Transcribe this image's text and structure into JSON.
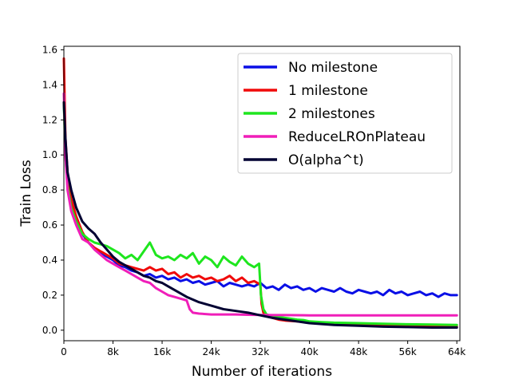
{
  "chart_data": {
    "type": "line",
    "title": "",
    "xlabel": "Number of iterations",
    "ylabel": "Train Loss",
    "xlim": [
      0,
      64500
    ],
    "ylim": [
      -0.06,
      1.62
    ],
    "xticks": [
      0,
      8000,
      16000,
      24000,
      32000,
      40000,
      48000,
      56000,
      64000
    ],
    "xtick_labels": [
      "0",
      "8k",
      "16k",
      "24k",
      "32k",
      "40k",
      "48k",
      "56k",
      "64k"
    ],
    "yticks": [
      0.0,
      0.2,
      0.4,
      0.6,
      0.8,
      1.0,
      1.2,
      1.4,
      1.6
    ],
    "ytick_labels": [
      "0.0",
      "0.2",
      "0.4",
      "0.6",
      "0.8",
      "1.0",
      "1.2",
      "1.4",
      "1.6"
    ],
    "grid": false,
    "legend_position": "top-right",
    "series": [
      {
        "name": "No milestone",
        "color": "#0a0fe6",
        "x": [
          0,
          250,
          600,
          1200,
          2000,
          3000,
          4000,
          5000,
          6000,
          7000,
          8000,
          9000,
          10000,
          11000,
          12000,
          13000,
          14000,
          15000,
          16000,
          17000,
          18000,
          19000,
          20000,
          21000,
          22000,
          23000,
          24000,
          25000,
          26000,
          27000,
          28000,
          29000,
          30000,
          31000,
          32000,
          33000,
          34000,
          35000,
          36000,
          37000,
          38000,
          39000,
          40000,
          41000,
          42000,
          43000,
          44000,
          45000,
          46000,
          47000,
          48000,
          49000,
          50000,
          51000,
          52000,
          53000,
          54000,
          55000,
          56000,
          57000,
          58000,
          59000,
          60000,
          61000,
          62000,
          63000,
          64000
        ],
        "y": [
          1.3,
          1.05,
          0.85,
          0.7,
          0.62,
          0.55,
          0.5,
          0.47,
          0.44,
          0.42,
          0.4,
          0.37,
          0.36,
          0.34,
          0.33,
          0.31,
          0.32,
          0.3,
          0.31,
          0.29,
          0.3,
          0.28,
          0.29,
          0.27,
          0.28,
          0.26,
          0.27,
          0.28,
          0.25,
          0.27,
          0.26,
          0.25,
          0.26,
          0.25,
          0.27,
          0.24,
          0.25,
          0.23,
          0.26,
          0.24,
          0.25,
          0.23,
          0.24,
          0.22,
          0.24,
          0.23,
          0.22,
          0.24,
          0.22,
          0.21,
          0.23,
          0.22,
          0.21,
          0.22,
          0.2,
          0.23,
          0.21,
          0.22,
          0.2,
          0.21,
          0.22,
          0.2,
          0.21,
          0.19,
          0.21,
          0.2,
          0.2
        ]
      },
      {
        "name": "1 milestone",
        "color": "#f00a0a",
        "x": [
          0,
          250,
          600,
          1200,
          2000,
          3000,
          4000,
          5000,
          6000,
          7000,
          8000,
          9000,
          10000,
          11000,
          12000,
          13000,
          14000,
          15000,
          16000,
          17000,
          18000,
          19000,
          20000,
          21000,
          22000,
          23000,
          24000,
          25000,
          26000,
          27000,
          28000,
          29000,
          30000,
          31000,
          32000,
          32200,
          32500,
          33000,
          34000,
          35000,
          36000,
          38000,
          40000,
          44000,
          48000,
          52000,
          56000,
          60000,
          64000
        ],
        "y": [
          1.55,
          1.1,
          0.9,
          0.75,
          0.65,
          0.56,
          0.5,
          0.47,
          0.45,
          0.43,
          0.41,
          0.38,
          0.37,
          0.36,
          0.35,
          0.34,
          0.36,
          0.34,
          0.35,
          0.32,
          0.33,
          0.3,
          0.32,
          0.3,
          0.31,
          0.29,
          0.3,
          0.28,
          0.29,
          0.31,
          0.28,
          0.3,
          0.27,
          0.28,
          0.26,
          0.15,
          0.1,
          0.08,
          0.07,
          0.06,
          0.055,
          0.05,
          0.045,
          0.035,
          0.03,
          0.025,
          0.022,
          0.02,
          0.02
        ]
      },
      {
        "name": "2 milestones",
        "color": "#1ee61e",
        "x": [
          0,
          250,
          600,
          1200,
          2000,
          3000,
          4000,
          5000,
          6000,
          7000,
          8000,
          9000,
          10000,
          11000,
          12000,
          13000,
          14000,
          15000,
          16000,
          17000,
          18000,
          19000,
          20000,
          21000,
          22000,
          23000,
          24000,
          25000,
          26000,
          27000,
          28000,
          29000,
          30000,
          31000,
          31800,
          32100,
          32500,
          33000,
          34000,
          35000,
          36000,
          37000,
          38000,
          39000,
          40000,
          42000,
          44000,
          48000,
          52000,
          56000,
          60000,
          64000
        ],
        "y": [
          1.3,
          1.0,
          0.82,
          0.7,
          0.62,
          0.55,
          0.52,
          0.5,
          0.49,
          0.48,
          0.46,
          0.44,
          0.41,
          0.43,
          0.4,
          0.45,
          0.5,
          0.43,
          0.41,
          0.42,
          0.4,
          0.43,
          0.41,
          0.44,
          0.38,
          0.42,
          0.4,
          0.36,
          0.42,
          0.39,
          0.37,
          0.42,
          0.38,
          0.36,
          0.38,
          0.2,
          0.12,
          0.09,
          0.08,
          0.075,
          0.07,
          0.065,
          0.06,
          0.058,
          0.05,
          0.046,
          0.043,
          0.04,
          0.037,
          0.034,
          0.032,
          0.03
        ]
      },
      {
        "name": "ReduceLROnPlateau",
        "color": "#f01eb9",
        "x": [
          0,
          250,
          600,
          1200,
          2000,
          3000,
          4000,
          5000,
          6000,
          7000,
          8000,
          9000,
          10000,
          11000,
          12000,
          13000,
          14000,
          15000,
          16000,
          17000,
          18000,
          19000,
          20000,
          20500,
          21000,
          22000,
          24000,
          26000,
          28000,
          30000,
          32000,
          34000,
          36000,
          40000,
          44000,
          48000,
          52000,
          56000,
          60000,
          64000
        ],
        "y": [
          1.35,
          1.0,
          0.8,
          0.68,
          0.6,
          0.52,
          0.5,
          0.46,
          0.43,
          0.4,
          0.38,
          0.36,
          0.34,
          0.32,
          0.3,
          0.28,
          0.27,
          0.24,
          0.22,
          0.2,
          0.19,
          0.18,
          0.17,
          0.12,
          0.1,
          0.095,
          0.09,
          0.09,
          0.09,
          0.088,
          0.087,
          0.086,
          0.086,
          0.085,
          0.085,
          0.085,
          0.085,
          0.085,
          0.085,
          0.085
        ]
      },
      {
        "name": "O(alpha^t)",
        "color": "#000032",
        "x": [
          0,
          250,
          600,
          1200,
          2000,
          3000,
          4000,
          5000,
          6000,
          7000,
          8000,
          9000,
          10000,
          11000,
          12000,
          13000,
          14000,
          15000,
          16000,
          17000,
          18000,
          19000,
          20000,
          22000,
          24000,
          26000,
          28000,
          30000,
          32000,
          34000,
          36000,
          38000,
          40000,
          42000,
          44000,
          48000,
          52000,
          56000,
          60000,
          64000
        ],
        "y": [
          1.3,
          1.1,
          0.9,
          0.8,
          0.7,
          0.62,
          0.58,
          0.55,
          0.5,
          0.46,
          0.42,
          0.39,
          0.37,
          0.35,
          0.33,
          0.31,
          0.3,
          0.28,
          0.27,
          0.25,
          0.23,
          0.21,
          0.19,
          0.16,
          0.14,
          0.12,
          0.11,
          0.1,
          0.085,
          0.07,
          0.06,
          0.05,
          0.04,
          0.035,
          0.03,
          0.025,
          0.02,
          0.018,
          0.015,
          0.015
        ]
      }
    ]
  }
}
